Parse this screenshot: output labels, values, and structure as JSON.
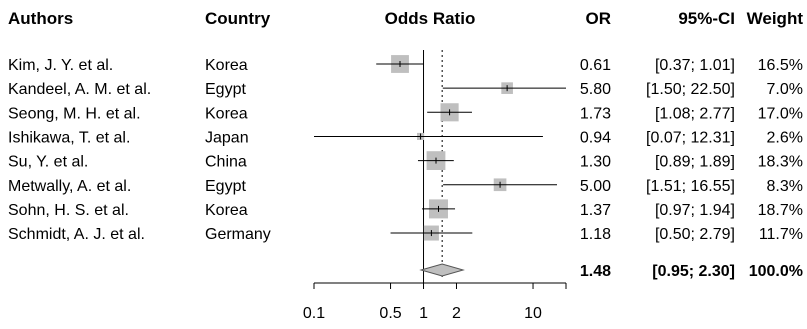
{
  "headers": {
    "authors": "Authors",
    "country": "Country",
    "plot": "Odds Ratio",
    "or": "OR",
    "ci": "95%-CI",
    "weight": "Weight"
  },
  "chart_data": {
    "type": "forest",
    "x_scale": "log",
    "xlim": [
      0.1,
      20
    ],
    "x_ticks": [
      "0.1",
      "0.5",
      "1",
      "2",
      "10"
    ],
    "null_line": 1,
    "summary_line": 1.48,
    "studies": [
      {
        "author": "Kim, J. Y. et al.",
        "country": "Korea",
        "or": 0.61,
        "lo": 0.37,
        "hi": 1.01,
        "or_text": "0.61",
        "ci_text": "[0.37;  1.01]",
        "weight": 16.5,
        "weight_text": "16.5%"
      },
      {
        "author": "Kandeel, A. M. et al.",
        "country": "Egypt",
        "or": 5.8,
        "lo": 1.5,
        "hi": 22.5,
        "or_text": "5.80",
        "ci_text": "[1.50; 22.50]",
        "weight": 7.0,
        "weight_text": "7.0%"
      },
      {
        "author": "Seong, M. H. et al.",
        "country": "Korea",
        "or": 1.73,
        "lo": 1.08,
        "hi": 2.77,
        "or_text": "1.73",
        "ci_text": "[1.08;  2.77]",
        "weight": 17.0,
        "weight_text": "17.0%"
      },
      {
        "author": "Ishikawa, T. et al.",
        "country": "Japan",
        "or": 0.94,
        "lo": 0.07,
        "hi": 12.31,
        "or_text": "0.94",
        "ci_text": "[0.07; 12.31]",
        "weight": 2.6,
        "weight_text": "2.6%"
      },
      {
        "author": "Su, Y. et al.",
        "country": "China",
        "or": 1.3,
        "lo": 0.89,
        "hi": 1.89,
        "or_text": "1.30",
        "ci_text": "[0.89;  1.89]",
        "weight": 18.3,
        "weight_text": "18.3%"
      },
      {
        "author": "Metwally, A. et al.",
        "country": "Egypt",
        "or": 5.0,
        "lo": 1.51,
        "hi": 16.55,
        "or_text": "5.00",
        "ci_text": "[1.51; 16.55]",
        "weight": 8.3,
        "weight_text": "8.3%"
      },
      {
        "author": "Sohn, H. S. et al.",
        "country": "Korea",
        "or": 1.37,
        "lo": 0.97,
        "hi": 1.94,
        "or_text": "1.37",
        "ci_text": "[0.97;  1.94]",
        "weight": 18.7,
        "weight_text": "18.7%"
      },
      {
        "author": "Schmidt, A. J. et al.",
        "country": "Germany",
        "or": 1.18,
        "lo": 0.5,
        "hi": 2.79,
        "or_text": "1.18",
        "ci_text": "[0.50;  2.79]",
        "weight": 11.7,
        "weight_text": "11.7%"
      }
    ],
    "pooled": {
      "or": 1.48,
      "lo": 0.95,
      "hi": 2.3,
      "or_text": "1.48",
      "ci_text": "[0.95;  2.30]",
      "weight_text": "100.0%"
    },
    "colors": {
      "box": "#bfbfbf",
      "diamond": "#bfbfbf",
      "line": "#000000"
    }
  }
}
